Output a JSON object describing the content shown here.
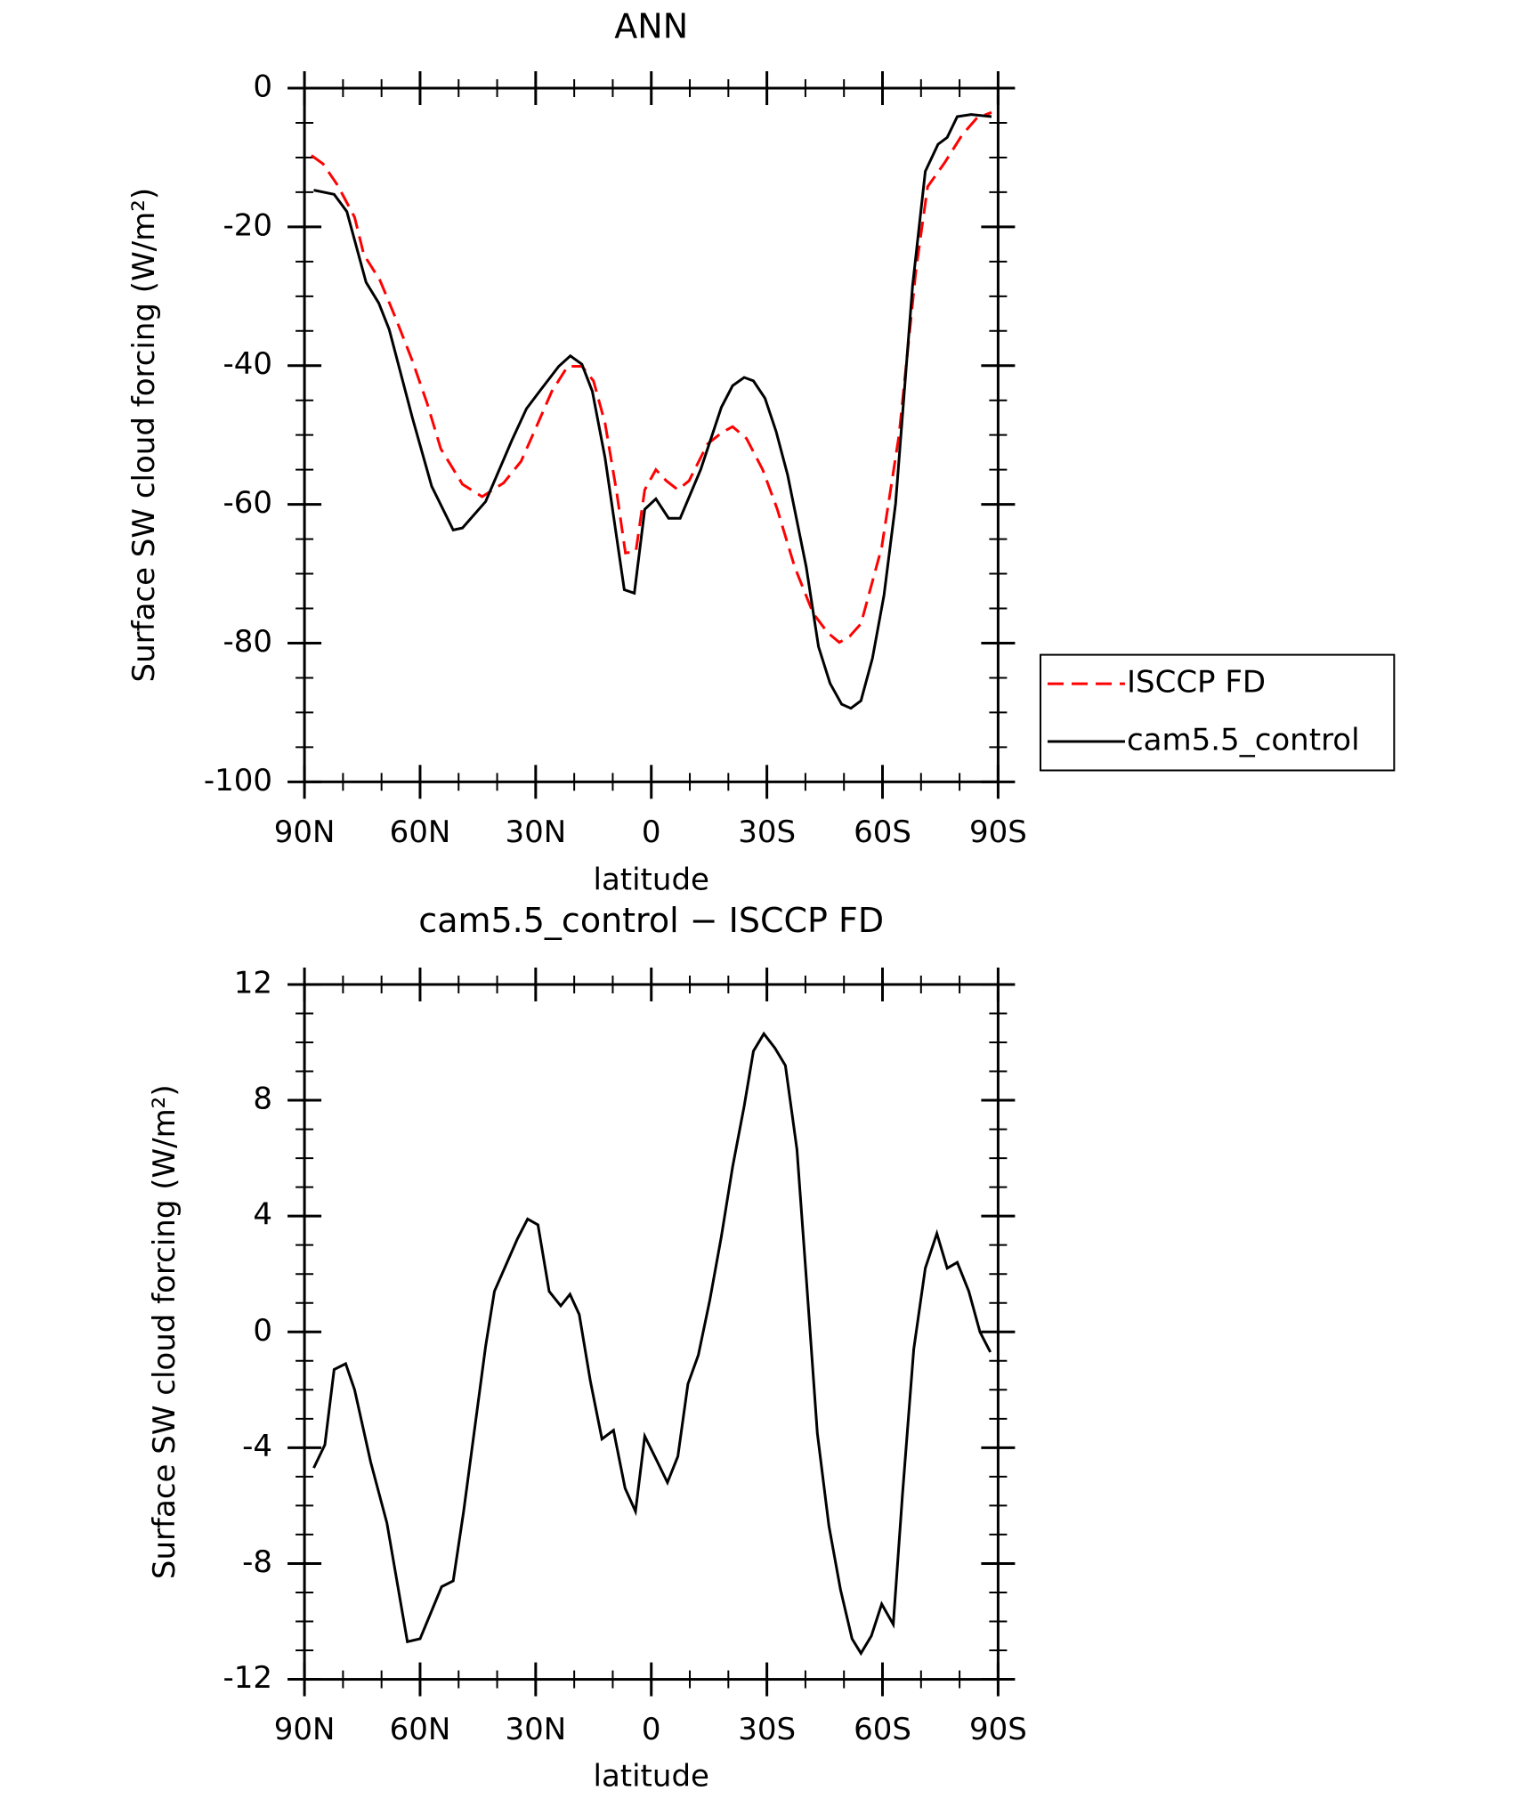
{
  "chart_data": [
    {
      "type": "line",
      "title": "ANN",
      "xlabel": "latitude",
      "ylabel": "Surface SW cloud forcing (W/m²)",
      "xlim": [
        90,
        -90
      ],
      "xticks": [
        {
          "value": 90,
          "label": "90N"
        },
        {
          "value": 60,
          "label": "60N"
        },
        {
          "value": 30,
          "label": "30N"
        },
        0,
        {
          "value": -30,
          "label": "30S"
        },
        {
          "value": -60,
          "label": "60S"
        },
        {
          "value": -90,
          "label": "90S"
        }
      ],
      "xminorticks": [
        80,
        70,
        50,
        40,
        20,
        10,
        -10,
        -20,
        -40,
        -50,
        -70,
        -80
      ],
      "ylim": [
        -100,
        0
      ],
      "yticks": [
        0,
        -20,
        -40,
        -60,
        -80,
        -100
      ],
      "yminorticks": [
        -5,
        -10,
        -15,
        -25,
        -30,
        -35,
        -45,
        -50,
        -55,
        -65,
        -70,
        -75,
        -85,
        -90,
        -95
      ],
      "legend": "right",
      "series": [
        {
          "name": "ISCCP FD",
          "color": "#ff0000",
          "linestyle": "dashed",
          "x": [
            88.2,
            85.2,
            81.4,
            77,
            74.6,
            70.4,
            66.3,
            62,
            58.2,
            54.6,
            49,
            43.9,
            38.3,
            33.8,
            29.4,
            25.8,
            21.7,
            18,
            15,
            12,
            9,
            6.7,
            4,
            1.7,
            -1.2,
            -3.9,
            -6.9,
            -9.8,
            -14.6,
            -18.2,
            -21.1,
            -24.7,
            -28.9,
            -32.7,
            -37.2,
            -42,
            -45.8,
            -48.8,
            -51.5,
            -54.4,
            -59.8,
            -64.3,
            -68.7,
            -71.7,
            -76.2,
            -80.6,
            -84.5,
            -88.3
          ],
          "values": [
            -9.7,
            -10.9,
            -14,
            -18.6,
            -24,
            -27.7,
            -33.2,
            -39.3,
            -45.4,
            -52,
            -57.1,
            -58.9,
            -56.9,
            -53.8,
            -48.3,
            -43.7,
            -40.1,
            -40.1,
            -42.2,
            -48.3,
            -58.2,
            -67,
            -66.8,
            -57.9,
            -55,
            -56.6,
            -57.9,
            -56.6,
            -51.3,
            -49.7,
            -48.8,
            -50.5,
            -55,
            -60.7,
            -69,
            -75.7,
            -78.5,
            -79.9,
            -79,
            -77.2,
            -66.2,
            -50,
            -26.1,
            -14.2,
            -10.7,
            -6.8,
            -4.3,
            -3.5
          ]
        },
        {
          "name": "cam5.5_control",
          "color": "#000000",
          "linestyle": "solid",
          "x": [
            87.6,
            82.3,
            79,
            74,
            70.7,
            68,
            62,
            57,
            51.4,
            49,
            43,
            36.2,
            32.4,
            29,
            24,
            21,
            18,
            15.3,
            12,
            7,
            4.4,
            1.7,
            -1.2,
            -4.5,
            -7.5,
            -12.8,
            -18.2,
            -21.1,
            -24.1,
            -26.5,
            -29.5,
            -32.4,
            -35.4,
            -40.2,
            -43.4,
            -46.4,
            -49.4,
            -51.8,
            -54.4,
            -57.4,
            -60.4,
            -63.4,
            -67.8,
            -71.1,
            -74.4,
            -76.8,
            -79.4,
            -83,
            -88.3
          ],
          "values": [
            -14.7,
            -15.3,
            -17.8,
            -28,
            -31,
            -34.8,
            -47.5,
            -57.4,
            -63.7,
            -63.4,
            -59.6,
            -50.8,
            -46.2,
            -43.7,
            -40.1,
            -38.6,
            -39.8,
            -43.7,
            -53.3,
            -72.3,
            -72.8,
            -60.7,
            -59.2,
            -62,
            -62,
            -55,
            -46,
            -42.9,
            -41.7,
            -42.2,
            -44.7,
            -49.5,
            -55.8,
            -69,
            -80.5,
            -85.8,
            -88.8,
            -89.4,
            -88.3,
            -82.2,
            -73.1,
            -59.9,
            -28.5,
            -12,
            -8.1,
            -7.1,
            -4.1,
            -3.8,
            -4.1
          ]
        }
      ]
    },
    {
      "type": "line",
      "title": "cam5.5_control − ISCCP FD",
      "xlabel": "latitude",
      "ylabel": "Surface SW cloud forcing (W/m²)",
      "xlim": [
        90,
        -90
      ],
      "xticks": [
        {
          "value": 90,
          "label": "90N"
        },
        {
          "value": 60,
          "label": "60N"
        },
        {
          "value": 30,
          "label": "30N"
        },
        0,
        {
          "value": -30,
          "label": "30S"
        },
        {
          "value": -60,
          "label": "60S"
        },
        {
          "value": -90,
          "label": "90S"
        }
      ],
      "xminorticks": [
        80,
        70,
        50,
        40,
        20,
        10,
        -10,
        -20,
        -40,
        -50,
        -70,
        -80
      ],
      "ylim": [
        -12,
        12
      ],
      "yticks": [
        12,
        8,
        4,
        0,
        -4,
        -8,
        -12
      ],
      "yminorticks": [
        11,
        10,
        9,
        7,
        6,
        5,
        3,
        2,
        1,
        -1,
        -2,
        -3,
        -5,
        -6,
        -7,
        -9,
        -10,
        -11
      ],
      "series": [
        {
          "color": "#000000",
          "linestyle": "solid",
          "x": [
            87.6,
            84.7,
            82.3,
            79.3,
            77,
            72.8,
            68.6,
            63.3,
            60,
            54.4,
            51.4,
            48.7,
            43,
            40.7,
            34.8,
            32.1,
            29.4,
            26.5,
            23.5,
            21.1,
            18.7,
            15.8,
            12.8,
            9.8,
            6.8,
            4.1,
            1.7,
            -0.9,
            -4.2,
            -6.9,
            -9.5,
            -12.2,
            -15.2,
            -18.2,
            -21.1,
            -24.1,
            -26.5,
            -29.2,
            -32.1,
            -34.8,
            -37.8,
            -40.2,
            -43.1,
            -46.1,
            -49.1,
            -52.1,
            -54.4,
            -57.1,
            -59.8,
            -62.8,
            -65.2,
            -68.1,
            -71.1,
            -74.1,
            -76.8,
            -79.4,
            -82.4,
            -85.3,
            -88
          ],
          "values": [
            -4.7,
            -3.9,
            -1.3,
            -1.1,
            -2,
            -4.5,
            -6.6,
            -10.7,
            -10.6,
            -8.8,
            -8.6,
            -6.2,
            -0.5,
            1.4,
            3.2,
            3.9,
            3.7,
            1.4,
            0.9,
            1.3,
            0.6,
            -1.7,
            -3.7,
            -3.4,
            -5.4,
            -6.2,
            -3.6,
            -4.3,
            -5.2,
            -4.3,
            -1.8,
            -0.8,
            1.1,
            3.3,
            5.7,
            7.8,
            9.7,
            10.3,
            9.8,
            9.2,
            6.3,
            1.9,
            -3.5,
            -6.7,
            -8.9,
            -10.6,
            -11.1,
            -10.5,
            -9.4,
            -10.1,
            -5.6,
            -0.6,
            2.2,
            3.4,
            2.2,
            2.4,
            1.4,
            0,
            -0.7
          ]
        }
      ]
    }
  ]
}
